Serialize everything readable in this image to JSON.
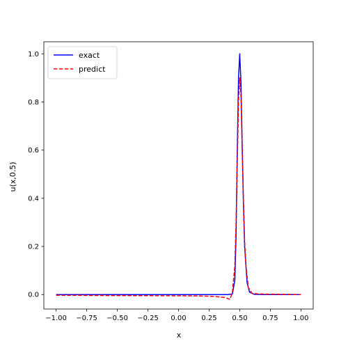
{
  "chart_data": {
    "type": "line",
    "xlabel": "x",
    "ylabel": "u(x,0.5)",
    "xlim": [
      -1.1,
      1.1
    ],
    "ylim": [
      -0.06,
      1.05
    ],
    "xticks": [
      -1.0,
      -0.75,
      -0.5,
      -0.25,
      0.0,
      0.25,
      0.5,
      0.75,
      1.0
    ],
    "xtick_labels": [
      "−1.00",
      "−0.75",
      "−0.50",
      "−0.25",
      "0.00",
      "0.25",
      "0.50",
      "0.75",
      "1.00"
    ],
    "yticks": [
      0.0,
      0.2,
      0.4,
      0.6,
      0.8,
      1.0
    ],
    "ytick_labels": [
      "0.0",
      "0.2",
      "0.4",
      "0.6",
      "0.8",
      "1.0"
    ],
    "grid": false,
    "legend_position": "top-left",
    "series": [
      {
        "name": "exact",
        "color": "#0000ff",
        "dash": "solid",
        "x": [
          -1.0,
          -0.5,
          0.0,
          0.3,
          0.4,
          0.44,
          0.46,
          0.47,
          0.48,
          0.49,
          0.5,
          0.51,
          0.52,
          0.53,
          0.54,
          0.56,
          0.58,
          0.62,
          0.7,
          1.0
        ],
        "y": [
          0.0,
          0.0,
          0.0,
          0.0,
          0.0,
          0.002,
          0.06,
          0.25,
          0.6,
          0.9,
          1.0,
          0.88,
          0.62,
          0.38,
          0.2,
          0.05,
          0.01,
          0.001,
          0.0,
          0.0
        ]
      },
      {
        "name": "predict",
        "color": "#ff0000",
        "dash": "dashed",
        "x": [
          -1.0,
          -0.5,
          0.0,
          0.2,
          0.3,
          0.38,
          0.42,
          0.44,
          0.46,
          0.47,
          0.48,
          0.49,
          0.5,
          0.51,
          0.52,
          0.53,
          0.54,
          0.55,
          0.57,
          0.6,
          0.65,
          0.7,
          1.0
        ],
        "y": [
          -0.003,
          -0.004,
          -0.005,
          -0.006,
          -0.008,
          -0.012,
          -0.02,
          0.01,
          0.12,
          0.3,
          0.55,
          0.8,
          0.9,
          0.82,
          0.6,
          0.4,
          0.22,
          0.12,
          0.03,
          0.005,
          0.003,
          0.002,
          0.0
        ]
      }
    ]
  }
}
